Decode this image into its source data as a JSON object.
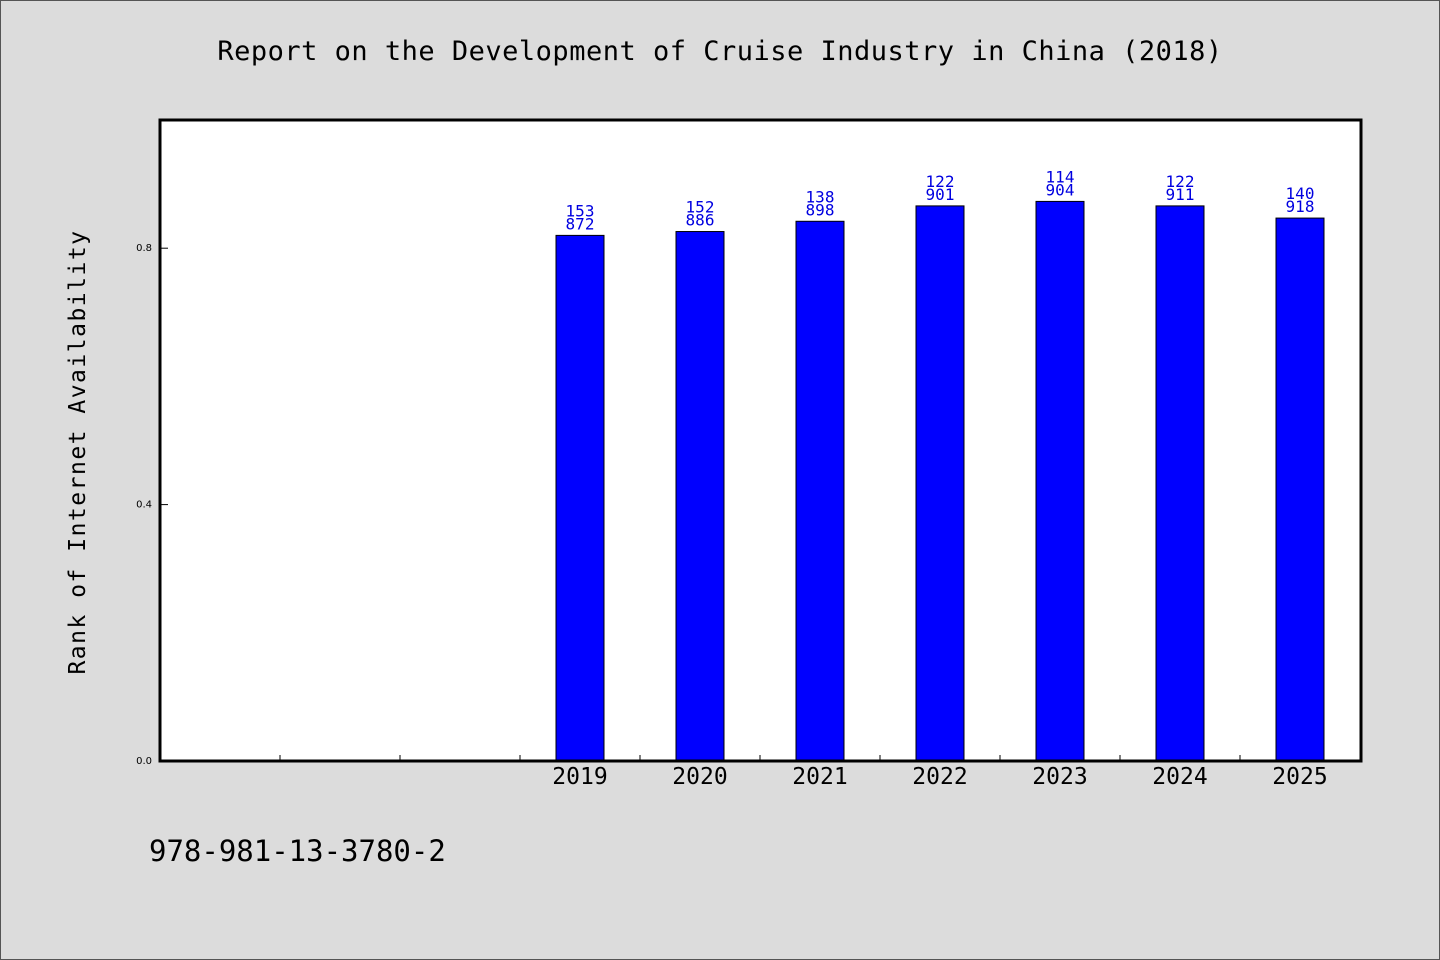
{
  "chart_data": {
    "type": "bar",
    "title": "Report on the Development of Cruise Industry in China (2018)",
    "ylabel": "Rank of Internet Availability",
    "xlabel": "",
    "categories": [
      "",
      "",
      "",
      "2019",
      "2020",
      "2021",
      "2022",
      "2023",
      "2024",
      "2025"
    ],
    "values": [
      null,
      null,
      null,
      0.82,
      0.826,
      0.842,
      0.866,
      0.873,
      0.866,
      0.847
    ],
    "data_labels": [
      null,
      null,
      null,
      [
        "153",
        "872"
      ],
      [
        "152",
        "886"
      ],
      [
        "138",
        "898"
      ],
      [
        "122",
        "901"
      ],
      [
        "114",
        "904"
      ],
      [
        "122",
        "911"
      ],
      [
        "140",
        "918"
      ]
    ],
    "yticks": [
      0.0,
      0.4,
      0.8
    ],
    "ytick_labels": [
      "0.0",
      "0.4",
      "0.8"
    ],
    "ylim": [
      0.0,
      1.0
    ],
    "bar_color": "#0000ff",
    "label_color": "#0000e0",
    "grid": false,
    "legend": "none"
  },
  "footnote": "978-981-13-3780-2"
}
